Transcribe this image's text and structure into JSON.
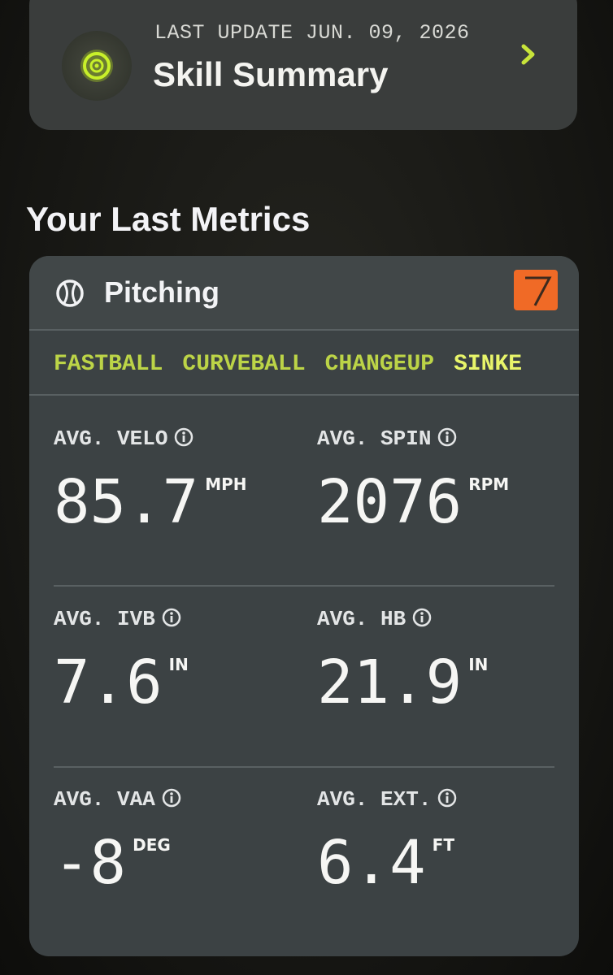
{
  "header": {
    "last_update": "LAST UPDATE JUN. 09, 2026",
    "title": "Skill Summary"
  },
  "section_title": "Your Last Metrics",
  "card": {
    "title": "Pitching",
    "tabs": [
      "FASTBALL",
      "CURVEBALL",
      "CHANGEUP",
      "SINKE"
    ],
    "metrics": [
      {
        "label": "AVG. VELO",
        "value": "85.7",
        "unit": "MPH"
      },
      {
        "label": "AVG. SPIN",
        "value": "2076",
        "unit": "RPM"
      },
      {
        "label": "AVG. IVB",
        "value": "7.6",
        "unit": "IN"
      },
      {
        "label": "AVG. HB",
        "value": "21.9",
        "unit": "IN"
      },
      {
        "label": "AVG. VAA",
        "value": "-8",
        "unit": "DEG"
      },
      {
        "label": "AVG. EXT.",
        "value": "6.4",
        "unit": "FT"
      }
    ]
  }
}
